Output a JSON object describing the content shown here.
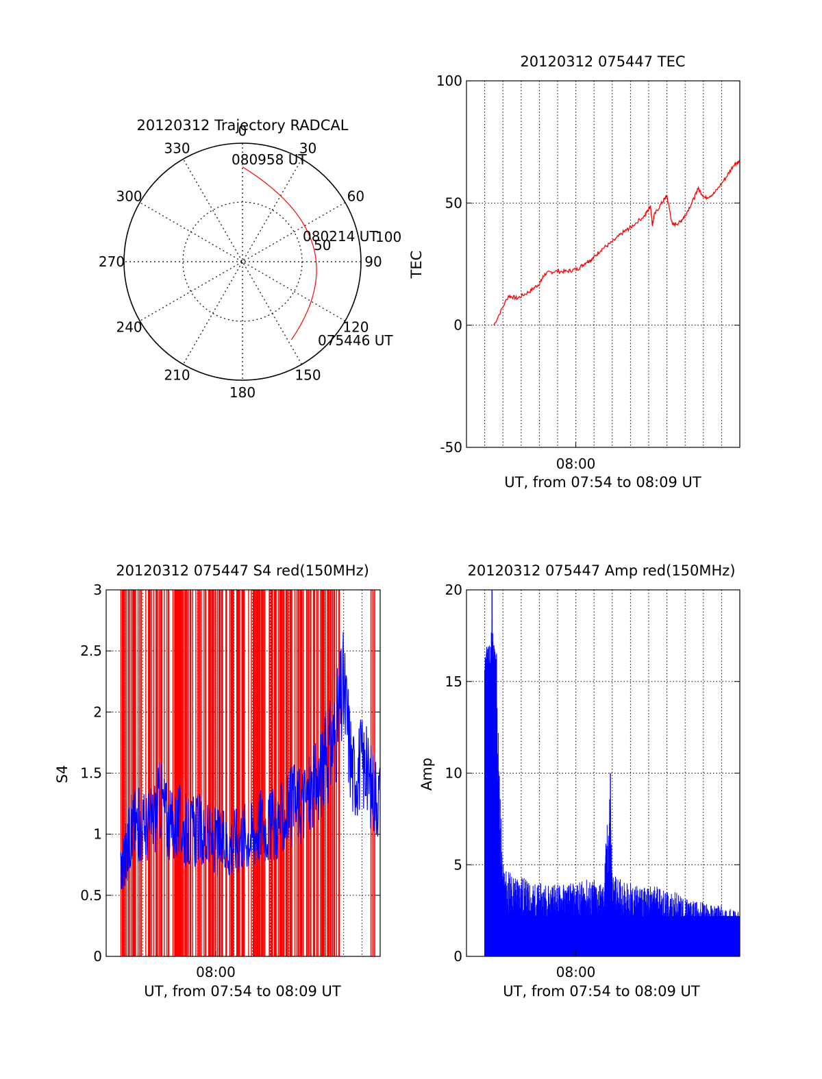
{
  "chart_data": [
    {
      "type": "polar",
      "title": "20120312 Trajectory RADCAL",
      "azimuth_ticks": [
        "0",
        "30",
        "60",
        "90",
        "120",
        "150",
        "180",
        "210",
        "240",
        "270",
        "300",
        "330"
      ],
      "elevation_ring_label": "50",
      "elevation_rings_deg": [
        0,
        50
      ],
      "track_color": "#ff0000",
      "track": {
        "start": {
          "azimuth": 148,
          "elevation": 20
        },
        "end": {
          "azimuth": 0,
          "elevation": 18
        }
      },
      "annotations": [
        {
          "text": "080958 UT",
          "azimuth": 0,
          "elevation": 18
        },
        {
          "text": "080214 UT",
          "azimuth": 78,
          "elevation": 35
        },
        {
          "text": "075446 UT",
          "azimuth": 148,
          "elevation": 20
        }
      ],
      "extra_label": "100"
    },
    {
      "type": "line",
      "title": "20120312 075447 TEC",
      "xlabel": "UT, from 07:54 to 08:09 UT",
      "ylabel": "TEC",
      "xlim_min": [
        474,
        489
      ],
      "x_tick_label": {
        "min": 480,
        "text": "08:00"
      },
      "ylim": [
        -50,
        100
      ],
      "yticks": [
        -50,
        0,
        50,
        100
      ],
      "grid": true,
      "color": "#ff0000",
      "x": [
        475.5,
        476.3,
        476.8,
        477.5,
        478.0,
        478.3,
        478.8,
        479.5,
        480.1,
        480.6,
        480.9,
        481.4,
        482.0,
        482.6,
        483.0,
        483.8,
        484.1,
        484.2,
        484.3,
        484.8,
        485.0,
        485.3,
        485.7,
        486.0,
        486.5,
        486.7,
        487.1,
        487.6,
        488.2,
        488.7,
        489.0
      ],
      "y": [
        0,
        12,
        11,
        14,
        17,
        21,
        22,
        22,
        23,
        26,
        27,
        31,
        34,
        38,
        40,
        45,
        49,
        41,
        45,
        51,
        53,
        41,
        42,
        45,
        52,
        56,
        52,
        54,
        60,
        66,
        67
      ]
    },
    {
      "type": "line",
      "title": "20120312 075447 S4 red(150MHz)",
      "xlabel": "UT, from 07:54 to 08:09 UT",
      "ylabel": "S4",
      "xlim_min": [
        474,
        489
      ],
      "x_tick_label": {
        "min": 480,
        "text": "08:00"
      },
      "ylim": [
        0,
        3
      ],
      "yticks": [
        "0",
        "0.5",
        "1",
        "1.5",
        "2",
        "2.5",
        "3"
      ],
      "ytick_values": [
        0,
        0.5,
        1,
        1.5,
        2,
        2.5,
        3
      ],
      "grid": true,
      "series": [
        {
          "name": "red",
          "color": "#ff0000",
          "note": "dense vertical spikes spanning full range from 474.8 to 486.8 min plus isolated lines near 488.6",
          "spike_region_min": [
            474.8,
            486.8
          ],
          "isolated_spikes_min": [
            488.5,
            488.6,
            488.7
          ]
        },
        {
          "name": "blue",
          "color": "#0000ff",
          "x": [
            474.8,
            475.0,
            475.3,
            475.6,
            476.0,
            476.5,
            477.0,
            477.5,
            478.0,
            478.5,
            479.0,
            479.5,
            480.0,
            480.5,
            481.0,
            481.5,
            482.0,
            482.5,
            483.0,
            483.5,
            484.0,
            484.5,
            485.0,
            485.5,
            486.0,
            486.5,
            487.0,
            487.5,
            488.0,
            488.5,
            489.0
          ],
          "y": [
            0.7,
            0.8,
            1.0,
            1.1,
            1.05,
            1.1,
            1.3,
            1.05,
            1.1,
            1.0,
            1.05,
            0.95,
            0.95,
            0.9,
            0.95,
            1.0,
            1.0,
            1.1,
            1.05,
            1.1,
            1.2,
            1.25,
            1.3,
            1.4,
            1.6,
            1.8,
            2.2,
            1.5,
            1.6,
            1.4,
            1.3
          ]
        }
      ]
    },
    {
      "type": "bar",
      "title": "20120312 075447 Amp red(150MHz)",
      "xlabel": "UT, from 07:54 to 08:09 UT",
      "ylabel": "Amp",
      "xlim_min": [
        474,
        489
      ],
      "x_tick_label": {
        "min": 480,
        "text": "08:00"
      },
      "ylim": [
        0,
        20
      ],
      "yticks": [
        0,
        5,
        10,
        15,
        20
      ],
      "grid": true,
      "color": "#0000ff",
      "x": [
        475.0,
        475.2,
        475.4,
        475.6,
        476.0,
        476.5,
        477.0,
        477.5,
        478.0,
        478.5,
        479.0,
        479.5,
        480.0,
        480.5,
        481.0,
        481.5,
        481.9,
        482.0,
        482.5,
        483.0,
        483.5,
        484.0,
        484.5,
        485.0,
        485.5,
        486.0,
        486.5,
        487.0,
        487.5,
        488.0,
        488.5,
        489.0
      ],
      "y": [
        16,
        17,
        20,
        17,
        5,
        4.5,
        4.5,
        4,
        4,
        4,
        4,
        4,
        4,
        4.2,
        4.2,
        4,
        10,
        4.5,
        4.2,
        4,
        3.8,
        3.8,
        4,
        3.5,
        3.5,
        3.2,
        3,
        3,
        2.8,
        2.8,
        2.6,
        2.4
      ]
    }
  ]
}
